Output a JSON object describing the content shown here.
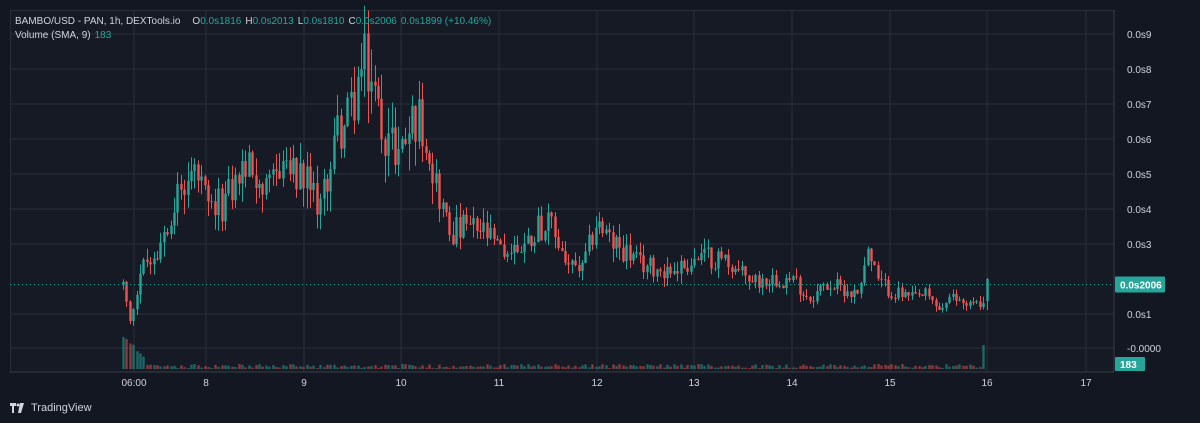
{
  "legend": {
    "symbol": "BAMBO/USD - PAN, 1h, DEXTools.io",
    "open_label": "O",
    "open": "0.0s1816",
    "high_label": "H",
    "high": "0.0s2013",
    "low_label": "L",
    "low": "0.0s1810",
    "close_label": "C",
    "close": "0.0s2006",
    "change": "0.0s1899 (+10.46%)",
    "volume_label": "Volume (SMA, 9)",
    "volume_value": "183"
  },
  "colors": {
    "up": "#26a69a",
    "down": "#ef5350",
    "background": "#131722",
    "grid": "#2a2e39",
    "last_price_line": "#26a69a"
  },
  "brand": "TradingView",
  "chart_data": {
    "type": "candlestick",
    "title": "BAMBO/USD - PAN, 1h, DEXTools.io",
    "x_tick_labels": [
      "06:00",
      "8",
      "9",
      "10",
      "11",
      "12",
      "13",
      "14",
      "15",
      "16",
      "17"
    ],
    "y_tick_labels": [
      "0.0s9",
      "0.0s8",
      "0.0s7",
      "0.0s6",
      "0.0s5",
      "0.0s4",
      "0.0s3",
      "0.0s1",
      "-0.0000"
    ],
    "y_tick_values": [
      9,
      8,
      7,
      6,
      5,
      4,
      3,
      1,
      0
    ],
    "y_unit_note": "values in units of 1e-6 (0.0s9 = 9)",
    "ylim": [
      0,
      9.5
    ],
    "last_price_label": "0.0s2006",
    "last_price": 2.0,
    "last_volume_label": "183",
    "grid": true,
    "legend_position": "top-left",
    "price_path": [
      [
        0.0,
        2.0
      ],
      [
        0.2,
        0.9
      ],
      [
        0.5,
        2.4
      ],
      [
        1.0,
        3.0
      ],
      [
        1.4,
        4.2
      ],
      [
        1.8,
        4.8
      ],
      [
        2.1,
        5.2
      ],
      [
        2.5,
        4.0
      ],
      [
        3.0,
        4.4
      ],
      [
        3.5,
        5.3
      ],
      [
        3.9,
        5.2
      ],
      [
        4.2,
        4.4
      ],
      [
        4.6,
        5.6
      ],
      [
        5.0,
        5.0
      ],
      [
        5.4,
        4.8
      ],
      [
        5.8,
        4.2
      ],
      [
        6.0,
        5.4
      ],
      [
        6.3,
        6.5
      ],
      [
        6.5,
        6.5
      ],
      [
        7.0,
        8.2
      ],
      [
        7.2,
        8.0
      ],
      [
        7.4,
        7.0
      ],
      [
        7.8,
        6.0
      ],
      [
        8.1,
        5.8
      ],
      [
        8.5,
        6.8
      ],
      [
        8.8,
        6.5
      ],
      [
        9.1,
        5.0
      ],
      [
        9.5,
        3.5
      ],
      [
        10.0,
        3.6
      ],
      [
        10.5,
        3.5
      ],
      [
        11.0,
        2.9
      ],
      [
        11.4,
        3.0
      ],
      [
        11.8,
        3.2
      ],
      [
        12.1,
        3.7
      ],
      [
        12.5,
        3.6
      ],
      [
        13.0,
        2.5
      ],
      [
        13.4,
        2.4
      ],
      [
        13.8,
        3.8
      ],
      [
        14.2,
        3.2
      ],
      [
        14.6,
        3.0
      ],
      [
        15.0,
        2.6
      ],
      [
        15.4,
        2.5
      ],
      [
        16.0,
        2.4
      ],
      [
        16.5,
        2.6
      ],
      [
        17.0,
        2.8
      ],
      [
        17.6,
        2.7
      ],
      [
        18.0,
        2.3
      ],
      [
        18.5,
        2.1
      ],
      [
        19.0,
        2.2
      ],
      [
        19.6,
        2.1
      ],
      [
        20.0,
        1.6
      ],
      [
        20.5,
        2.0
      ],
      [
        21.0,
        1.9
      ],
      [
        21.4,
        1.7
      ],
      [
        21.7,
        3.0
      ],
      [
        22.0,
        2.1
      ],
      [
        22.4,
        1.8
      ],
      [
        23.0,
        1.6
      ],
      [
        23.4,
        1.7
      ],
      [
        23.8,
        1.3
      ],
      [
        24.2,
        1.6
      ],
      [
        24.6,
        1.5
      ],
      [
        25.0,
        1.4
      ],
      [
        25.2,
        2.0
      ]
    ],
    "price_path_note": "approximate hourly trend read off the chart; x in hours since session open (06:00), y in 1e-6 units"
  }
}
